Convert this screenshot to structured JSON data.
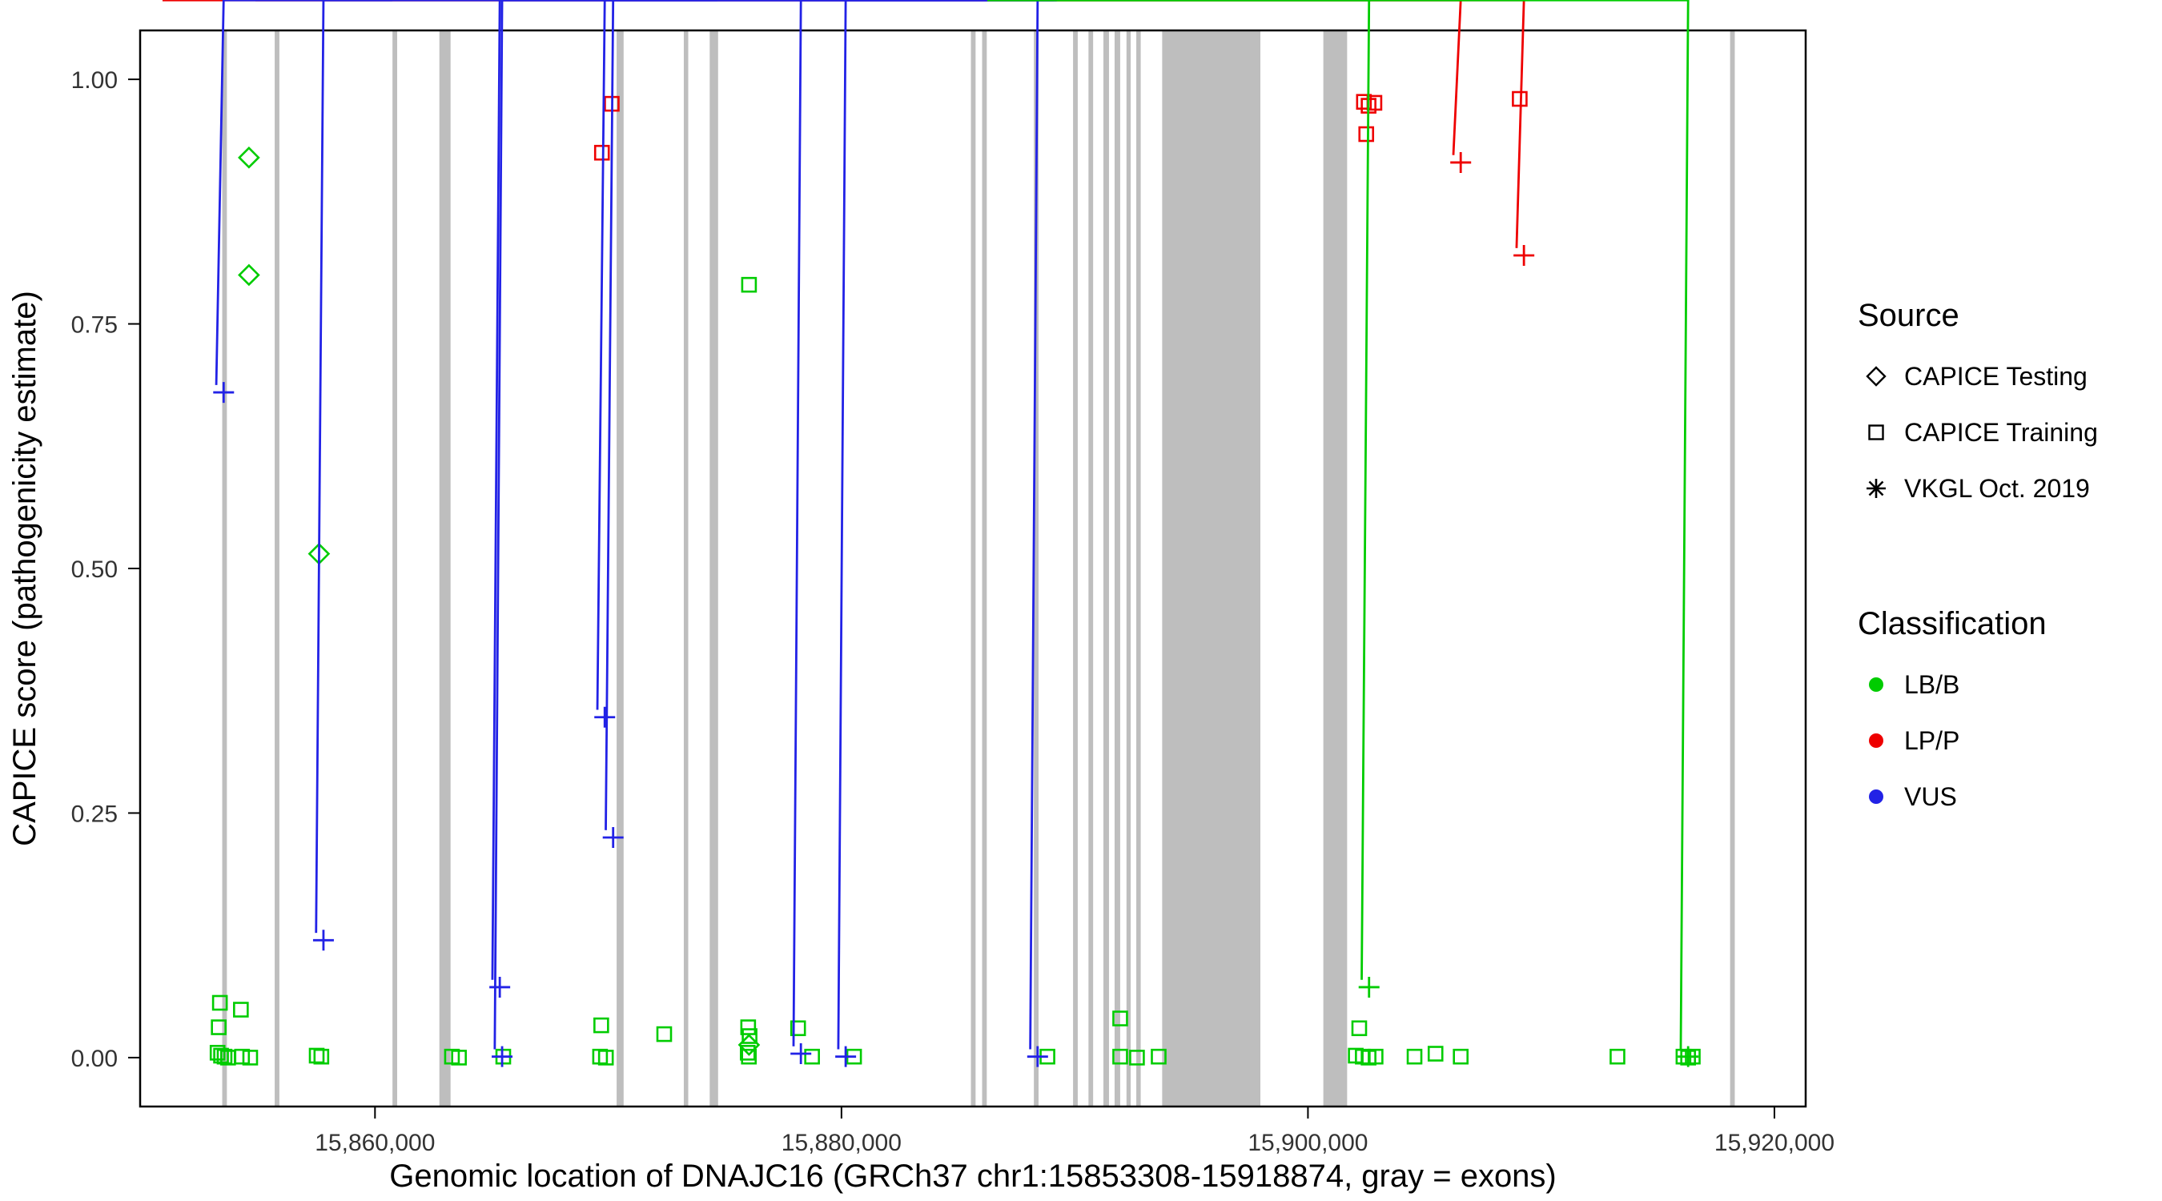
{
  "chart_data": {
    "type": "scatter",
    "title": "",
    "xlabel": "Genomic location of DNAJC16 (GRCh37 chr1:15853308-15918874, gray = exons)",
    "ylabel": "CAPICE score (pathogenicity estimate)",
    "xlim": [
      15849930,
      15921340
    ],
    "ylim": [
      -0.05,
      1.05
    ],
    "grid": "off",
    "legend_position": "right",
    "x_ticks": [
      {
        "value": 15860000,
        "label": "15,860,000"
      },
      {
        "value": 15880000,
        "label": "15,880,000"
      },
      {
        "value": 15900000,
        "label": "15,900,000"
      },
      {
        "value": 15920000,
        "label": "15,920,000"
      }
    ],
    "y_ticks": [
      {
        "value": 0.0,
        "label": "0.00"
      },
      {
        "value": 0.25,
        "label": "0.25"
      },
      {
        "value": 0.5,
        "label": "0.50"
      },
      {
        "value": 0.75,
        "label": "0.75"
      },
      {
        "value": 1.0,
        "label": "1.00"
      }
    ],
    "exon_color": "#BEBEBE",
    "exons": [
      [
        15853450,
        15853650
      ],
      [
        15855700,
        15855900
      ],
      [
        15860750,
        15860950
      ],
      [
        15862760,
        15863240
      ],
      [
        15870360,
        15870660
      ],
      [
        15873240,
        15873430
      ],
      [
        15874350,
        15874710
      ],
      [
        15885550,
        15885750
      ],
      [
        15886030,
        15886230
      ],
      [
        15888250,
        15888450
      ],
      [
        15889930,
        15890130
      ],
      [
        15890590,
        15890790
      ],
      [
        15891230,
        15891470
      ],
      [
        15891710,
        15891950
      ],
      [
        15892220,
        15892400
      ],
      [
        15892640,
        15892830
      ],
      [
        15893750,
        15897960
      ],
      [
        15900660,
        15901680
      ],
      [
        15918100,
        15918300
      ]
    ],
    "classification_colors": {
      "LB/B": "#00CC00",
      "LP/P": "#EE0000",
      "VUS": "#2222E6"
    },
    "source_shapes": {
      "CAPICE Testing": "diamond",
      "CAPICE Training": "square",
      "VKGL Oct. 2019": "asterisk"
    },
    "series": [
      {
        "source": "CAPICE Testing",
        "classification": "LB/B",
        "points": [
          [
            15854595,
            0.92
          ],
          [
            15854595,
            0.8
          ],
          [
            15857600,
            0.515
          ],
          [
            15876036,
            0.013
          ]
        ]
      },
      {
        "source": "CAPICE Training",
        "classification": "LB/B",
        "points": [
          [
            15853350,
            0.056
          ],
          [
            15854250,
            0.049
          ],
          [
            15853300,
            0.031
          ],
          [
            15853250,
            0.005
          ],
          [
            15853400,
            0.002
          ],
          [
            15853550,
            0.001
          ],
          [
            15853700,
            0.0
          ],
          [
            15854300,
            0.001
          ],
          [
            15854650,
            0.0
          ],
          [
            15857500,
            0.002
          ],
          [
            15857700,
            0.001
          ],
          [
            15863300,
            0.001
          ],
          [
            15863600,
            0.0
          ],
          [
            15865500,
            0.001
          ],
          [
            15869700,
            0.033
          ],
          [
            15869650,
            0.001
          ],
          [
            15869900,
            0.0
          ],
          [
            15872400,
            0.024
          ],
          [
            15876036,
            0.79
          ],
          [
            15876000,
            0.031
          ],
          [
            15876060,
            0.022
          ],
          [
            15875980,
            0.005
          ],
          [
            15876030,
            0.001
          ],
          [
            15878140,
            0.03
          ],
          [
            15878740,
            0.001
          ],
          [
            15880540,
            0.001
          ],
          [
            15888830,
            0.001
          ],
          [
            15891950,
            0.04
          ],
          [
            15891950,
            0.001
          ],
          [
            15892670,
            0.0
          ],
          [
            15893600,
            0.001
          ],
          [
            15902200,
            0.03
          ],
          [
            15902050,
            0.002
          ],
          [
            15902350,
            0.001
          ],
          [
            15902600,
            0.0
          ],
          [
            15902900,
            0.001
          ],
          [
            15904570,
            0.001
          ],
          [
            15905470,
            0.004
          ],
          [
            15906550,
            0.001
          ],
          [
            15913270,
            0.001
          ],
          [
            15916100,
            0.001
          ],
          [
            15916300,
            0.0
          ],
          [
            15916500,
            0.001
          ]
        ]
      },
      {
        "source": "CAPICE Training",
        "classification": "LP/P",
        "points": [
          [
            15869730,
            0.925
          ],
          [
            15870150,
            0.975
          ],
          [
            15902400,
            0.977
          ],
          [
            15902600,
            0.973
          ],
          [
            15902850,
            0.976
          ],
          [
            15902500,
            0.944
          ],
          [
            15909080,
            0.98
          ]
        ]
      },
      {
        "source": "VKGL Oct. 2019",
        "classification": "LP/P",
        "points": [
          [
            15906550,
            0.915
          ],
          [
            15909260,
            0.82
          ]
        ]
      },
      {
        "source": "VKGL Oct. 2019",
        "classification": "VUS",
        "points": [
          [
            15853510,
            0.68
          ],
          [
            15857790,
            0.12
          ],
          [
            15865350,
            0.072
          ],
          [
            15865450,
            0.001
          ],
          [
            15869850,
            0.348
          ],
          [
            15870210,
            0.225
          ],
          [
            15878260,
            0.004
          ],
          [
            15880180,
            0.001
          ],
          [
            15888410,
            0.001
          ]
        ]
      },
      {
        "source": "VKGL Oct. 2019",
        "classification": "LB/B",
        "points": [
          [
            15902620,
            0.072
          ],
          [
            15916300,
            0.001
          ]
        ]
      }
    ]
  },
  "legend": {
    "source": {
      "title": "Source",
      "items": [
        {
          "label": "CAPICE Testing",
          "shape": "diamond"
        },
        {
          "label": "CAPICE Training",
          "shape": "square"
        },
        {
          "label": "VKGL Oct. 2019",
          "shape": "asterisk"
        }
      ]
    },
    "classification": {
      "title": "Classification",
      "items": [
        {
          "label": "LB/B",
          "color": "#00CC00"
        },
        {
          "label": "LP/P",
          "color": "#EE0000"
        },
        {
          "label": "VUS",
          "color": "#2222E6"
        }
      ]
    }
  }
}
